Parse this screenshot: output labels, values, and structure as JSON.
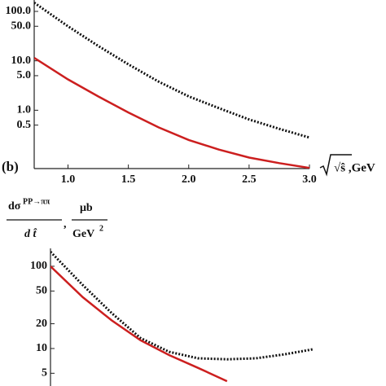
{
  "chart_data": [
    {
      "type": "line",
      "label": "(b)",
      "x_label": "√ŝ ,GeV",
      "log_y": true,
      "x": [
        0.72,
        1.0,
        1.25,
        1.5,
        1.75,
        2.0,
        2.25,
        2.5,
        2.75,
        3.0
      ],
      "series": [
        {
          "color": "#111111",
          "style": "dotted",
          "values": [
            150,
            50,
            20,
            8.5,
            3.8,
            1.9,
            1.1,
            0.65,
            0.42,
            0.28
          ]
        },
        {
          "color": "#cc1f1f",
          "style": "solid",
          "values": [
            11.5,
            4.2,
            1.9,
            0.9,
            0.45,
            0.25,
            0.16,
            0.11,
            0.085,
            0.068
          ]
        }
      ],
      "xlim": [
        0.72,
        3.0
      ],
      "xticks": [
        {
          "value": 1.0,
          "label": "1.0"
        },
        {
          "value": 1.5,
          "label": "1.5"
        },
        {
          "value": 2.0,
          "label": "2.0"
        },
        {
          "value": 2.5,
          "label": "2.5"
        },
        {
          "value": 3.0,
          "label": "3.0"
        }
      ],
      "ylim": [
        0.066,
        170
      ],
      "yticks": [
        {
          "value": 100,
          "label": "100.0"
        },
        {
          "value": 50,
          "label": "50.0"
        },
        {
          "value": 10,
          "label": "10.0"
        },
        {
          "value": 5,
          "label": "5.0"
        },
        {
          "value": 1,
          "label": "1.0"
        },
        0.5
      ]
    },
    {
      "type": "line",
      "log_y": true,
      "y_label": {
        "left_numerator": "dσ",
        "left_superscript": "PP→ππ",
        "left_denominator": "d t̂",
        "separator": ",",
        "right_numerator": "μb",
        "right_denominator": "GeV",
        "right_superscript": "2"
      },
      "x": [
        0.72,
        1.0,
        1.25,
        1.5,
        1.75,
        2.0,
        2.25,
        2.5,
        2.75,
        3.0
      ],
      "series": [
        {
          "color": "#111111",
          "style": "dotted",
          "values": [
            150,
            59,
            27,
            13.4,
            9.1,
            7.6,
            7.4,
            7.6,
            8.5,
            9.8
          ]
        },
        {
          "color": "#cc1f1f",
          "style": "solid",
          "values": [
            100,
            42,
            22,
            12.6,
            8.3,
            5.8,
            4.0,
            null,
            null,
            null
          ]
        }
      ],
      "xlim": [
        0.72,
        3.0
      ],
      "ylim": [
        3.5,
        165
      ],
      "yticks": [
        100,
        50,
        20,
        10,
        5
      ]
    }
  ]
}
